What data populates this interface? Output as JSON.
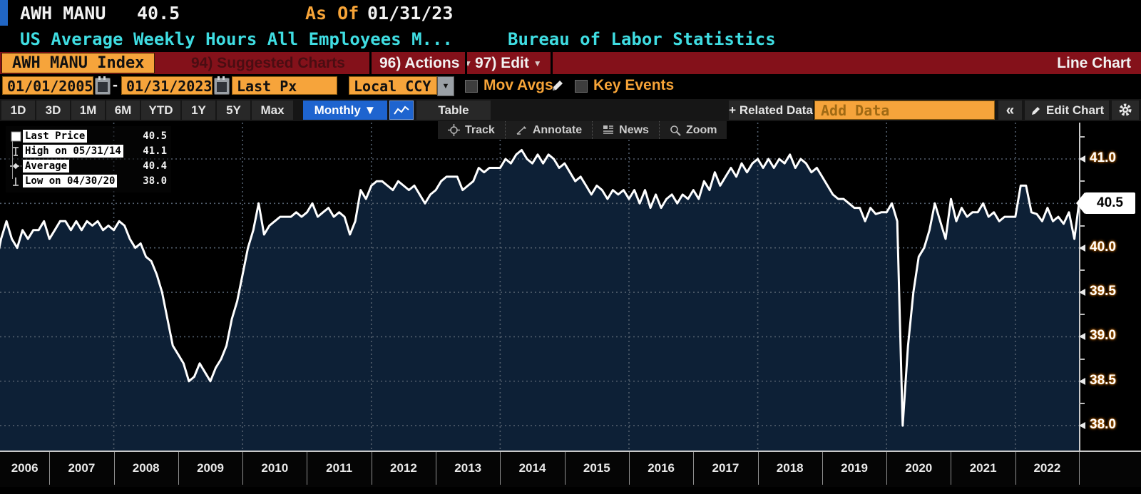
{
  "header": {
    "ticker": "AWH MANU",
    "last_value": "40.5",
    "as_of_label": "As Of",
    "as_of_date": "01/31/23",
    "description": "US Average Weekly Hours All Employees M...",
    "source": "Bureau of Labor Statistics"
  },
  "menu_bar": {
    "security_tab": "AWH MANU Index",
    "suggested_charts": "94) Suggested Charts",
    "actions": "96) Actions",
    "edit": "97) Edit",
    "chart_type": "Line Chart"
  },
  "controls": {
    "start_date": "01/01/2005",
    "date_separator": "-",
    "end_date": "01/31/2023",
    "price_field": "Last Px",
    "currency": "Local CCY",
    "ccy_arrow": "▼",
    "mov_avgs_label": "Mov Avgs",
    "key_events_label": "Key Events"
  },
  "toolbar": {
    "ranges": [
      "1D",
      "3D",
      "1M",
      "6M",
      "YTD",
      "1Y",
      "5Y",
      "Max"
    ],
    "period": "Monthly ▼",
    "table_label": "Table",
    "related_data_label": "+ Related Data",
    "add_data_placeholder": "Add Data",
    "collapse_label": "«",
    "edit_chart_label": "Edit Chart"
  },
  "chart_tools": {
    "track": "Track",
    "annotate": "Annotate",
    "news": "News",
    "zoom": "Zoom"
  },
  "legend": {
    "items": [
      {
        "label": "Last Price",
        "value": "40.5"
      },
      {
        "label": "High on 05/31/14",
        "value": "41.1"
      },
      {
        "label": "Average",
        "value": "40.4"
      },
      {
        "label": "Low on 04/30/20",
        "value": "38.0"
      }
    ]
  },
  "axis": {
    "current_tag": "40.5",
    "y_ticks": [
      "41.0",
      "40.5",
      "40.0",
      "39.5",
      "39.0",
      "38.5",
      "38.0"
    ],
    "x_years": [
      "2006",
      "2007",
      "2008",
      "2009",
      "2010",
      "2011",
      "2012",
      "2013",
      "2014",
      "2015",
      "2016",
      "2017",
      "2018",
      "2019",
      "2020",
      "2021",
      "2022"
    ]
  },
  "chart_data": {
    "type": "line",
    "title": "AWH MANU Index - US Average Weekly Hours All Employees Manufacturing",
    "frequency": "monthly",
    "x_start": "2006-03",
    "x_end": "2023-01",
    "ylim": [
      37.8,
      41.3
    ],
    "y_gridlines": [
      41.0,
      40.5,
      40.0,
      39.5,
      39.0,
      38.5,
      38.0
    ],
    "x_gridline_years": [
      2008,
      2010,
      2012,
      2014,
      2016,
      2018,
      2020,
      2022
    ],
    "annotations": {
      "last_price": 40.5,
      "high": {
        "date": "05/31/14",
        "value": 41.1
      },
      "average": 40.4,
      "low": {
        "date": "04/30/20",
        "value": 38.0
      }
    },
    "series": [
      {
        "name": "Last Price",
        "values": [
          39.8,
          40.1,
          40.3,
          40.1,
          40.0,
          40.2,
          40.1,
          40.2,
          40.2,
          40.3,
          40.1,
          40.2,
          40.3,
          40.3,
          40.2,
          40.3,
          40.2,
          40.3,
          40.25,
          40.3,
          40.2,
          40.25,
          40.2,
          40.3,
          40.25,
          40.1,
          40.0,
          40.05,
          39.9,
          39.85,
          39.7,
          39.5,
          39.2,
          38.9,
          38.8,
          38.7,
          38.5,
          38.55,
          38.7,
          38.6,
          38.5,
          38.65,
          38.75,
          38.9,
          39.2,
          39.4,
          39.7,
          40.0,
          40.2,
          40.5,
          40.15,
          40.25,
          40.3,
          40.35,
          40.35,
          40.35,
          40.4,
          40.35,
          40.4,
          40.5,
          40.35,
          40.4,
          40.45,
          40.35,
          40.4,
          40.35,
          40.15,
          40.3,
          40.65,
          40.55,
          40.7,
          40.75,
          40.75,
          40.7,
          40.65,
          40.75,
          40.7,
          40.65,
          40.7,
          40.6,
          40.5,
          40.6,
          40.65,
          40.75,
          40.8,
          40.8,
          40.8,
          40.65,
          40.7,
          40.75,
          40.9,
          40.85,
          40.9,
          40.9,
          40.9,
          41.0,
          40.95,
          41.05,
          41.1,
          41.0,
          40.95,
          41.05,
          40.95,
          41.05,
          41.0,
          40.9,
          40.95,
          40.85,
          40.75,
          40.8,
          40.7,
          40.6,
          40.7,
          40.65,
          40.55,
          40.65,
          40.6,
          40.65,
          40.55,
          40.65,
          40.5,
          40.65,
          40.45,
          40.6,
          40.45,
          40.55,
          40.6,
          40.5,
          40.6,
          40.55,
          40.65,
          40.55,
          40.75,
          40.65,
          40.85,
          40.7,
          40.8,
          40.9,
          40.8,
          40.95,
          40.85,
          40.95,
          41.0,
          40.9,
          41.0,
          40.9,
          41.0,
          40.95,
          41.05,
          40.9,
          41.0,
          40.95,
          40.85,
          40.9,
          40.8,
          40.7,
          40.6,
          40.55,
          40.55,
          40.5,
          40.45,
          40.45,
          40.3,
          40.45,
          40.38,
          40.4,
          40.4,
          40.5,
          40.3,
          38.0,
          38.9,
          39.5,
          39.9,
          40.0,
          40.2,
          40.5,
          40.3,
          40.1,
          40.55,
          40.3,
          40.45,
          40.35,
          40.4,
          40.4,
          40.5,
          40.35,
          40.4,
          40.3,
          40.35,
          40.35,
          40.35,
          40.7,
          40.7,
          40.4,
          40.38,
          40.3,
          40.45,
          40.3,
          40.35,
          40.27,
          40.4,
          40.1,
          40.5
        ]
      }
    ]
  }
}
